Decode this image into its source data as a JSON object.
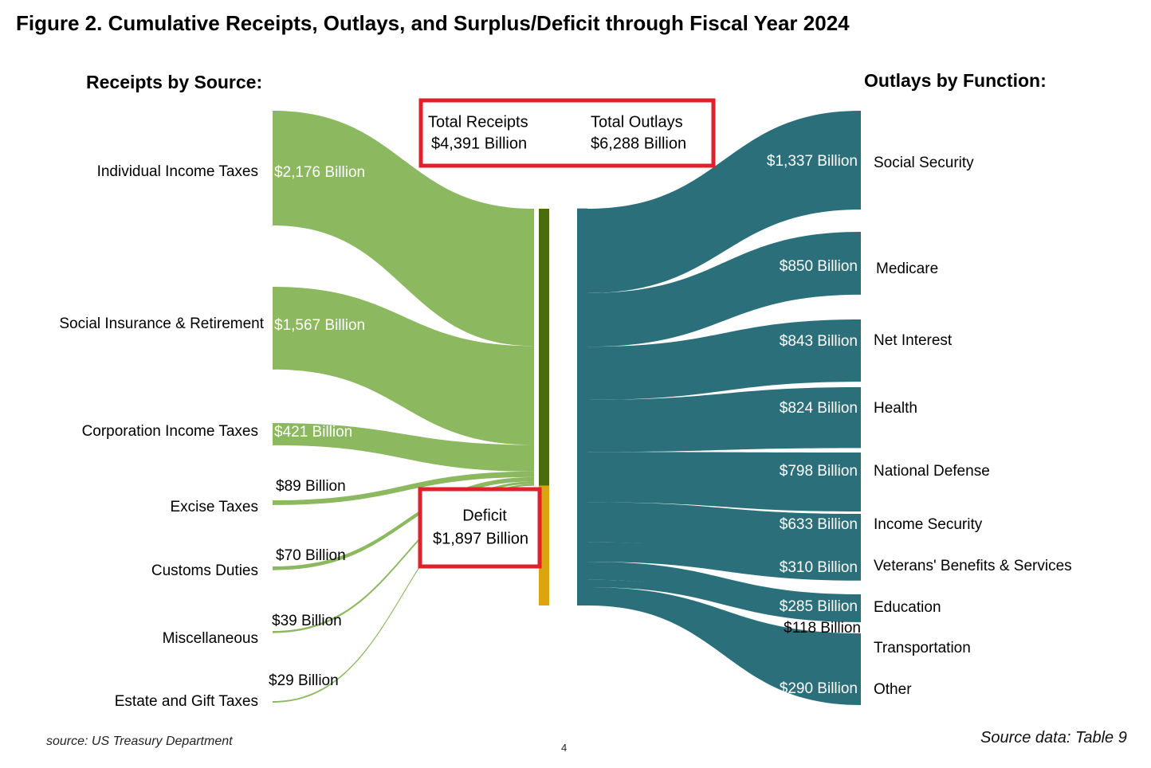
{
  "title": "Figure 2. Cumulative Receipts, Outlays, and Surplus/Deficit through Fiscal Year 2024",
  "receipts_heading": "Receipts by Source:",
  "outlays_heading": "Outlays by Function:",
  "totals": {
    "receipts_label": "Total Receipts",
    "receipts_value": "$4,391 Billion",
    "outlays_label": "Total Outlays",
    "outlays_value": "$6,288 Billion"
  },
  "deficit": {
    "label": "Deficit",
    "value": "$1,897 Billion"
  },
  "colors": {
    "receipts": "#8cb860",
    "receipts_bar": "#4a6b0e",
    "deficit": "#dba50f",
    "outlays": "#2b6f7a",
    "highlight_box": "#e0202a"
  },
  "chart_data": {
    "type": "sankey",
    "units": "Billion",
    "sources": [
      {
        "name": "Individual Income Taxes",
        "value": 2176,
        "label": "$2,176 Billion"
      },
      {
        "name": "Social Insurance & Retirement",
        "value": 1567,
        "label": "$1,567 Billion"
      },
      {
        "name": "Corporation Income Taxes",
        "value": 421,
        "label": "$421 Billion"
      },
      {
        "name": "Excise Taxes",
        "value": 89,
        "label": "$89 Billion"
      },
      {
        "name": "Customs Duties",
        "value": 70,
        "label": "$70 Billion"
      },
      {
        "name": "Miscellaneous",
        "value": 39,
        "label": "$39 Billion"
      },
      {
        "name": "Estate and Gift Taxes",
        "value": 29,
        "label": "$29 Billion"
      }
    ],
    "outlays": [
      {
        "name": "Social Security",
        "value": 1337,
        "label": "$1,337 Billion"
      },
      {
        "name": "Medicare",
        "value": 850,
        "label": "$850 Billion"
      },
      {
        "name": "Net Interest",
        "value": 843,
        "label": "$843 Billion"
      },
      {
        "name": "Health",
        "value": 824,
        "label": "$824 Billion"
      },
      {
        "name": "National Defense",
        "value": 798,
        "label": "$798 Billion"
      },
      {
        "name": "Income Security",
        "value": 633,
        "label": "$633 Billion"
      },
      {
        "name": "Veterans' Benefits & Services",
        "value": 310,
        "label": "$310 Billion"
      },
      {
        "name": "Education",
        "value": 285,
        "label": "$285 Billion"
      },
      {
        "name": "Transportation",
        "value": 118,
        "label": "$118 Billion"
      },
      {
        "name": "Other",
        "value": 290,
        "label": "$290 Billion"
      }
    ],
    "total_receipts": 4391,
    "total_outlays": 6288,
    "deficit": 1897
  },
  "footer": {
    "source": "source: US Treasury Department",
    "page": "4",
    "source_data": "Source data: Table 9"
  }
}
